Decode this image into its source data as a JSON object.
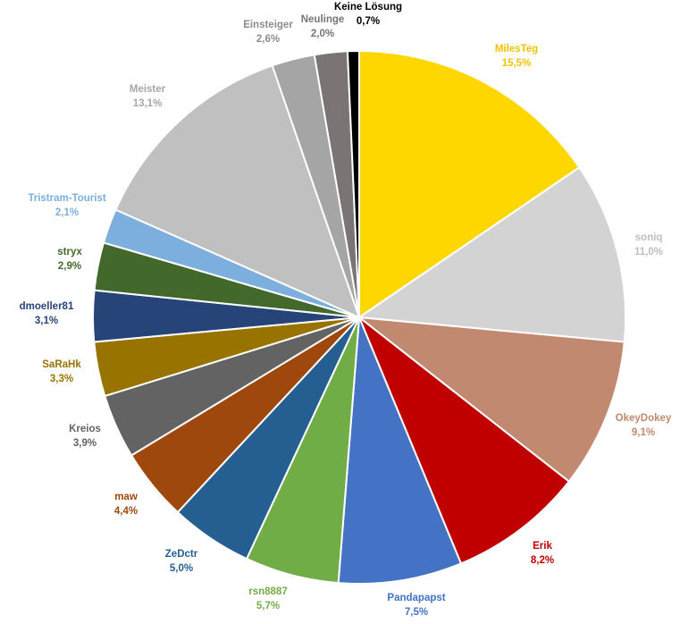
{
  "chart_data": {
    "type": "pie",
    "start": "top",
    "direction": "clockwise",
    "slices": [
      {
        "label": "MilesTeg",
        "value_label": "15,5%",
        "value": 15.5,
        "color": "#ffd700",
        "label_color": "#f2c300"
      },
      {
        "label": "soniq",
        "value_label": "11,0%",
        "value": 11.0,
        "color": "#d3d3d3",
        "label_color": "#bdbdbd"
      },
      {
        "label": "OkeyDokey",
        "value_label": "9,1%",
        "value": 9.1,
        "color": "#c18a70",
        "label_color": "#c18a70"
      },
      {
        "label": "Erik",
        "value_label": "8,2%",
        "value": 8.2,
        "color": "#c00000",
        "label_color": "#c00000"
      },
      {
        "label": "Pandapapst",
        "value_label": "7,5%",
        "value": 7.5,
        "color": "#4472c4",
        "label_color": "#4472c4"
      },
      {
        "label": "rsn8887",
        "value_label": "5,7%",
        "value": 5.7,
        "color": "#70ad47",
        "label_color": "#70ad47"
      },
      {
        "label": "ZeDctr",
        "value_label": "5,0%",
        "value": 5.0,
        "color": "#255e91",
        "label_color": "#255e91"
      },
      {
        "label": "maw",
        "value_label": "4,4%",
        "value": 4.4,
        "color": "#9e480e",
        "label_color": "#9e480e"
      },
      {
        "label": "Kreios",
        "value_label": "3,9%",
        "value": 3.9,
        "color": "#636363",
        "label_color": "#636363"
      },
      {
        "label": "SaRaHk",
        "value_label": "3,3%",
        "value": 3.3,
        "color": "#997300",
        "label_color": "#997300"
      },
      {
        "label": "dmoeller81",
        "value_label": "3,1%",
        "value": 3.1,
        "color": "#264478",
        "label_color": "#264478"
      },
      {
        "label": "stryx",
        "value_label": "2,9%",
        "value": 2.9,
        "color": "#43682b",
        "label_color": "#43682b"
      },
      {
        "label": "Tristram-Tourist",
        "value_label": "2,1%",
        "value": 2.1,
        "color": "#7cafdd",
        "label_color": "#7cafdd"
      },
      {
        "label": "Meister",
        "value_label": "13,1%",
        "value": 13.1,
        "color": "#c0c0c0",
        "label_color": "#a6a6a6"
      },
      {
        "label": "Einsteiger",
        "value_label": "2,6%",
        "value": 2.6,
        "color": "#a5a5a5",
        "label_color": "#8c8c8c"
      },
      {
        "label": "Neulinge",
        "value_label": "2,0%",
        "value": 2.0,
        "color": "#7a7474",
        "label_color": "#7a7474"
      },
      {
        "label": "Keine Lösung",
        "value_label": "0,7%",
        "value": 0.7,
        "color": "#000000",
        "label_color": "#000000"
      }
    ]
  }
}
